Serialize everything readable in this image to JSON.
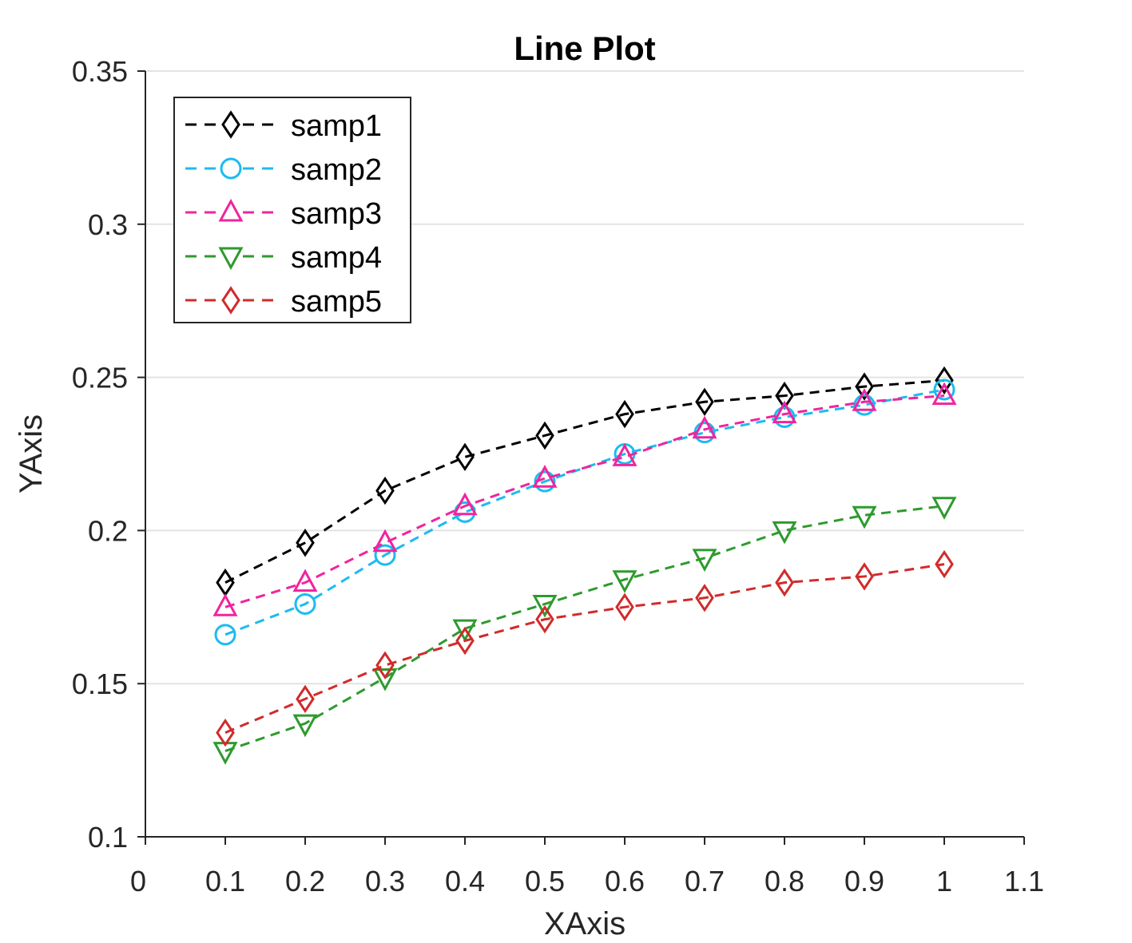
{
  "chart_data": {
    "type": "line",
    "title": "Line Plot",
    "xlabel": "XAxis",
    "ylabel": "YAxis",
    "xlim": [
      0,
      1.1
    ],
    "ylim": [
      0.1,
      0.35
    ],
    "xticks": [
      0,
      0.1,
      0.2,
      0.3,
      0.4,
      0.5,
      0.6,
      0.7,
      0.8,
      0.9,
      1,
      1.1
    ],
    "xtick_labels": [
      "0",
      "0.1",
      "0.2",
      "0.3",
      "0.4",
      "0.5",
      "0.6",
      "0.7",
      "0.8",
      "0.9",
      "1",
      "1.1"
    ],
    "yticks": [
      0.1,
      0.15,
      0.2,
      0.25,
      0.3,
      0.35
    ],
    "ytick_labels": [
      "0.1",
      "0.15",
      "0.2",
      "0.25",
      "0.3",
      "0.35"
    ],
    "grid": "horizontal",
    "legend_position": "top-left",
    "line_style": "dashed",
    "x": [
      0.1,
      0.2,
      0.3,
      0.4,
      0.5,
      0.6,
      0.7,
      0.8,
      0.9,
      1.0
    ],
    "series": [
      {
        "name": "samp1",
        "color": "#000000",
        "marker": "diamond",
        "values": [
          0.183,
          0.196,
          0.213,
          0.224,
          0.231,
          0.238,
          0.242,
          0.244,
          0.247,
          0.249
        ]
      },
      {
        "name": "samp2",
        "color": "#1ABCF0",
        "marker": "circle",
        "values": [
          0.166,
          0.176,
          0.192,
          0.206,
          0.216,
          0.225,
          0.232,
          0.237,
          0.241,
          0.246
        ]
      },
      {
        "name": "samp3",
        "color": "#F0249E",
        "marker": "triangle-up",
        "values": [
          0.175,
          0.183,
          0.196,
          0.208,
          0.217,
          0.224,
          0.233,
          0.238,
          0.242,
          0.244
        ]
      },
      {
        "name": "samp4",
        "color": "#2E9A2E",
        "marker": "triangle-down",
        "values": [
          0.128,
          0.137,
          0.152,
          0.168,
          0.176,
          0.184,
          0.191,
          0.2,
          0.205,
          0.208
        ]
      },
      {
        "name": "samp5",
        "color": "#D12B2B",
        "marker": "diamond",
        "values": [
          0.134,
          0.145,
          0.156,
          0.164,
          0.171,
          0.175,
          0.178,
          0.183,
          0.185,
          0.189
        ]
      }
    ]
  }
}
